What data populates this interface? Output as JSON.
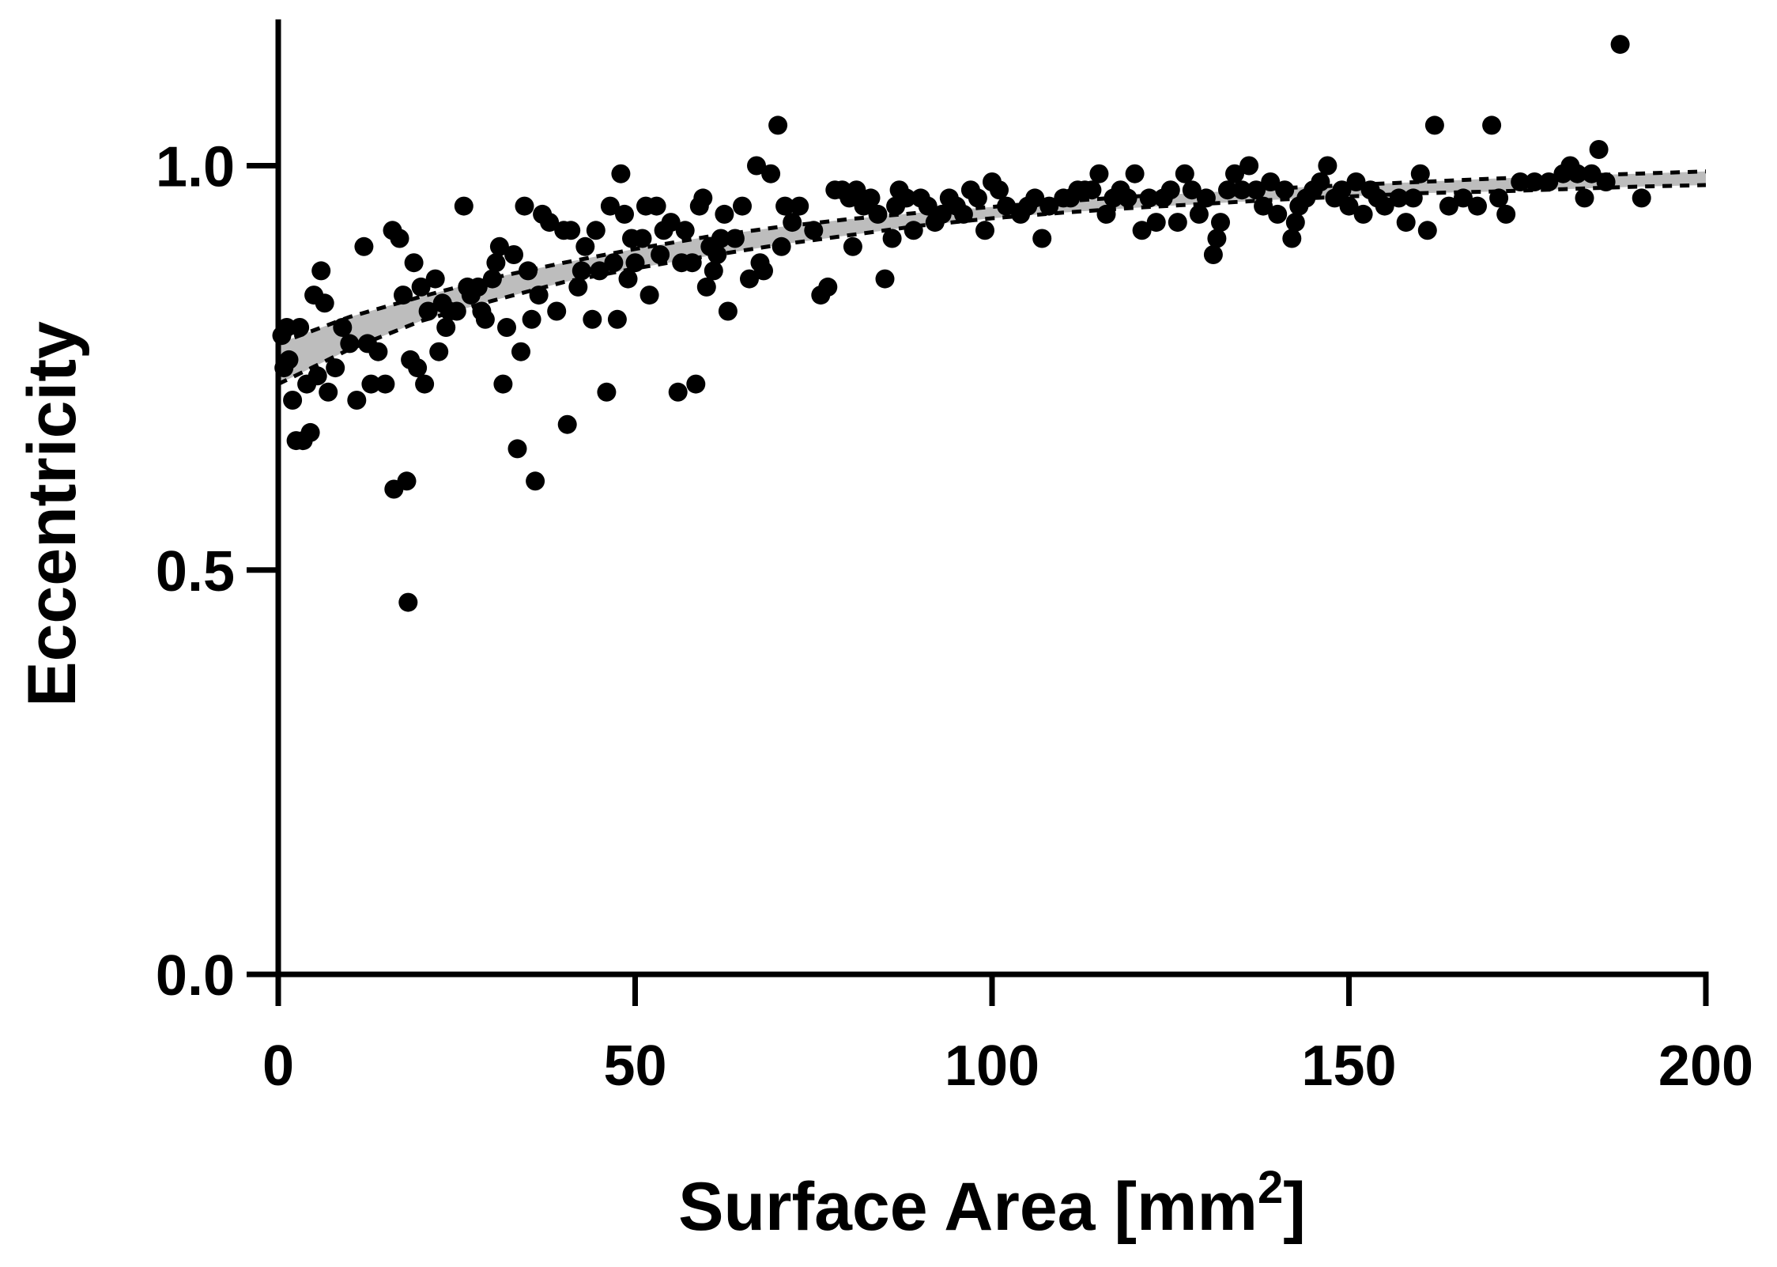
{
  "chart_data": {
    "type": "scatter",
    "title": "",
    "xlabel": "Surface  Area [mm",
    "xlabel_sup": "2",
    "xlabel_end": "]",
    "ylabel": "Eccentricity",
    "xlim": [
      0,
      200
    ],
    "ylim": [
      0,
      1.2
    ],
    "x_ticks": [
      0,
      50,
      100,
      150,
      200
    ],
    "x_tick_labels": [
      "0",
      "50",
      "100",
      "150",
      "200"
    ],
    "y_ticks": [
      0,
      0.5,
      1.0
    ],
    "y_tick_labels": [
      "0.0",
      "0.5",
      "1.0"
    ],
    "grid": false,
    "point_color": "#000000",
    "band_color": "#bdbdbd",
    "fit": {
      "x": [
        0,
        10,
        20,
        30,
        40,
        50,
        60,
        70,
        80,
        90,
        100,
        110,
        120,
        130,
        140,
        150,
        160,
        170,
        180,
        190,
        200
      ],
      "mid": [
        0.755,
        0.793,
        0.823,
        0.847,
        0.868,
        0.885,
        0.9,
        0.913,
        0.924,
        0.934,
        0.942,
        0.949,
        0.955,
        0.96,
        0.965,
        0.969,
        0.973,
        0.976,
        0.979,
        0.982,
        0.984
      ],
      "upper": [
        0.78,
        0.813,
        0.838,
        0.861,
        0.88,
        0.897,
        0.912,
        0.924,
        0.934,
        0.942,
        0.949,
        0.956,
        0.962,
        0.967,
        0.972,
        0.976,
        0.98,
        0.984,
        0.987,
        0.99,
        0.993
      ],
      "lower": [
        0.73,
        0.773,
        0.808,
        0.833,
        0.856,
        0.873,
        0.888,
        0.902,
        0.914,
        0.926,
        0.935,
        0.942,
        0.948,
        0.953,
        0.958,
        0.962,
        0.966,
        0.968,
        0.971,
        0.974,
        0.976
      ]
    },
    "points": [
      [
        0.5,
        0.79
      ],
      [
        0.8,
        0.75
      ],
      [
        1.2,
        0.8
      ],
      [
        1.5,
        0.76
      ],
      [
        2,
        0.71
      ],
      [
        2.5,
        0.66
      ],
      [
        3,
        0.8
      ],
      [
        3.5,
        0.66
      ],
      [
        4,
        0.73
      ],
      [
        4.5,
        0.67
      ],
      [
        5,
        0.84
      ],
      [
        5.5,
        0.74
      ],
      [
        6,
        0.87
      ],
      [
        6.5,
        0.83
      ],
      [
        7,
        0.72
      ],
      [
        8,
        0.75
      ],
      [
        9,
        0.8
      ],
      [
        10,
        0.78
      ],
      [
        11,
        0.71
      ],
      [
        12,
        0.9
      ],
      [
        12.5,
        0.78
      ],
      [
        13,
        0.73
      ],
      [
        14,
        0.77
      ],
      [
        15,
        0.73
      ],
      [
        16,
        0.92
      ],
      [
        16.2,
        0.6
      ],
      [
        17,
        0.91
      ],
      [
        17.5,
        0.84
      ],
      [
        18,
        0.61
      ],
      [
        18.2,
        0.46
      ],
      [
        18.5,
        0.76
      ],
      [
        19,
        0.88
      ],
      [
        19.5,
        0.75
      ],
      [
        20,
        0.85
      ],
      [
        20.5,
        0.73
      ],
      [
        21,
        0.82
      ],
      [
        22,
        0.86
      ],
      [
        22.5,
        0.77
      ],
      [
        23,
        0.83
      ],
      [
        23.5,
        0.8
      ],
      [
        24,
        0.82
      ],
      [
        25,
        0.82
      ],
      [
        26,
        0.95
      ],
      [
        26.5,
        0.85
      ],
      [
        27,
        0.84
      ],
      [
        28,
        0.85
      ],
      [
        28.5,
        0.82
      ],
      [
        29,
        0.81
      ],
      [
        30,
        0.86
      ],
      [
        30.5,
        0.88
      ],
      [
        31,
        0.9
      ],
      [
        31.5,
        0.73
      ],
      [
        32,
        0.8
      ],
      [
        33,
        0.89
      ],
      [
        33.5,
        0.65
      ],
      [
        34,
        0.77
      ],
      [
        34.5,
        0.95
      ],
      [
        35,
        0.87
      ],
      [
        35.5,
        0.81
      ],
      [
        36,
        0.61
      ],
      [
        36.5,
        0.84
      ],
      [
        37,
        0.94
      ],
      [
        38,
        0.93
      ],
      [
        39,
        0.82
      ],
      [
        40,
        0.92
      ],
      [
        40.5,
        0.68
      ],
      [
        41,
        0.92
      ],
      [
        42,
        0.85
      ],
      [
        42.5,
        0.87
      ],
      [
        43,
        0.9
      ],
      [
        44,
        0.81
      ],
      [
        44.5,
        0.92
      ],
      [
        45,
        0.87
      ],
      [
        46,
        0.72
      ],
      [
        46.5,
        0.95
      ],
      [
        47,
        0.88
      ],
      [
        47.5,
        0.81
      ],
      [
        48,
        0.99
      ],
      [
        48.5,
        0.94
      ],
      [
        49,
        0.86
      ],
      [
        49.5,
        0.91
      ],
      [
        50,
        0.88
      ],
      [
        51,
        0.91
      ],
      [
        51.5,
        0.95
      ],
      [
        52,
        0.84
      ],
      [
        53,
        0.95
      ],
      [
        53.5,
        0.89
      ],
      [
        54,
        0.92
      ],
      [
        55,
        0.93
      ],
      [
        56,
        0.72
      ],
      [
        56.5,
        0.88
      ],
      [
        57,
        0.92
      ],
      [
        58,
        0.88
      ],
      [
        58.5,
        0.73
      ],
      [
        59,
        0.95
      ],
      [
        59.5,
        0.96
      ],
      [
        60,
        0.85
      ],
      [
        60.5,
        0.9
      ],
      [
        61,
        0.87
      ],
      [
        61.5,
        0.89
      ],
      [
        62,
        0.91
      ],
      [
        62.5,
        0.94
      ],
      [
        63,
        0.82
      ],
      [
        64,
        0.91
      ],
      [
        65,
        0.95
      ],
      [
        66,
        0.86
      ],
      [
        67,
        1.0
      ],
      [
        67.5,
        0.88
      ],
      [
        68,
        0.87
      ],
      [
        69,
        0.99
      ],
      [
        70,
        1.05
      ],
      [
        70.5,
        0.9
      ],
      [
        71,
        0.95
      ],
      [
        72,
        0.93
      ],
      [
        73,
        0.95
      ],
      [
        75,
        0.92
      ],
      [
        76,
        0.84
      ],
      [
        77,
        0.85
      ],
      [
        78,
        0.97
      ],
      [
        79,
        0.97
      ],
      [
        80,
        0.96
      ],
      [
        80.5,
        0.9
      ],
      [
        81,
        0.97
      ],
      [
        82,
        0.95
      ],
      [
        83,
        0.96
      ],
      [
        84,
        0.94
      ],
      [
        85,
        0.86
      ],
      [
        86,
        0.91
      ],
      [
        86.5,
        0.95
      ],
      [
        87,
        0.97
      ],
      [
        88,
        0.96
      ],
      [
        89,
        0.92
      ],
      [
        90,
        0.96
      ],
      [
        91,
        0.95
      ],
      [
        92,
        0.93
      ],
      [
        93,
        0.94
      ],
      [
        94,
        0.96
      ],
      [
        95,
        0.95
      ],
      [
        96,
        0.94
      ],
      [
        97,
        0.97
      ],
      [
        98,
        0.96
      ],
      [
        99,
        0.92
      ],
      [
        100,
        0.98
      ],
      [
        101,
        0.97
      ],
      [
        102,
        0.95
      ],
      [
        104,
        0.94
      ],
      [
        105,
        0.95
      ],
      [
        106,
        0.96
      ],
      [
        107,
        0.91
      ],
      [
        108,
        0.95
      ],
      [
        110,
        0.96
      ],
      [
        111,
        0.96
      ],
      [
        112,
        0.97
      ],
      [
        113,
        0.97
      ],
      [
        114,
        0.97
      ],
      [
        115,
        0.99
      ],
      [
        116,
        0.94
      ],
      [
        117,
        0.96
      ],
      [
        118,
        0.97
      ],
      [
        119,
        0.96
      ],
      [
        120,
        0.99
      ],
      [
        121,
        0.92
      ],
      [
        122,
        0.96
      ],
      [
        123,
        0.93
      ],
      [
        124,
        0.96
      ],
      [
        125,
        0.97
      ],
      [
        126,
        0.93
      ],
      [
        127,
        0.99
      ],
      [
        128,
        0.97
      ],
      [
        129,
        0.94
      ],
      [
        130,
        0.96
      ],
      [
        131,
        0.89
      ],
      [
        131.5,
        0.91
      ],
      [
        132,
        0.93
      ],
      [
        133,
        0.97
      ],
      [
        134,
        0.99
      ],
      [
        135,
        0.97
      ],
      [
        136,
        1.0
      ],
      [
        137,
        0.97
      ],
      [
        138,
        0.95
      ],
      [
        139,
        0.98
      ],
      [
        140,
        0.94
      ],
      [
        141,
        0.97
      ],
      [
        142,
        0.91
      ],
      [
        142.5,
        0.93
      ],
      [
        143,
        0.95
      ],
      [
        144,
        0.96
      ],
      [
        145,
        0.97
      ],
      [
        146,
        0.98
      ],
      [
        147,
        1.0
      ],
      [
        148,
        0.96
      ],
      [
        149,
        0.97
      ],
      [
        150,
        0.95
      ],
      [
        151,
        0.98
      ],
      [
        152,
        0.94
      ],
      [
        153,
        0.97
      ],
      [
        154,
        0.96
      ],
      [
        155,
        0.95
      ],
      [
        157,
        0.96
      ],
      [
        158,
        0.93
      ],
      [
        159,
        0.96
      ],
      [
        160,
        0.99
      ],
      [
        161,
        0.92
      ],
      [
        162,
        1.05
      ],
      [
        164,
        0.95
      ],
      [
        166,
        0.96
      ],
      [
        168,
        0.95
      ],
      [
        170,
        1.05
      ],
      [
        171,
        0.96
      ],
      [
        172,
        0.94
      ],
      [
        174,
        0.98
      ],
      [
        176,
        0.98
      ],
      [
        178,
        0.98
      ],
      [
        180,
        0.99
      ],
      [
        181,
        1.0
      ],
      [
        182,
        0.99
      ],
      [
        183,
        0.96
      ],
      [
        184,
        0.99
      ],
      [
        185,
        1.02
      ],
      [
        186,
        0.98
      ],
      [
        188,
        1.15
      ],
      [
        191,
        0.96
      ]
    ]
  }
}
